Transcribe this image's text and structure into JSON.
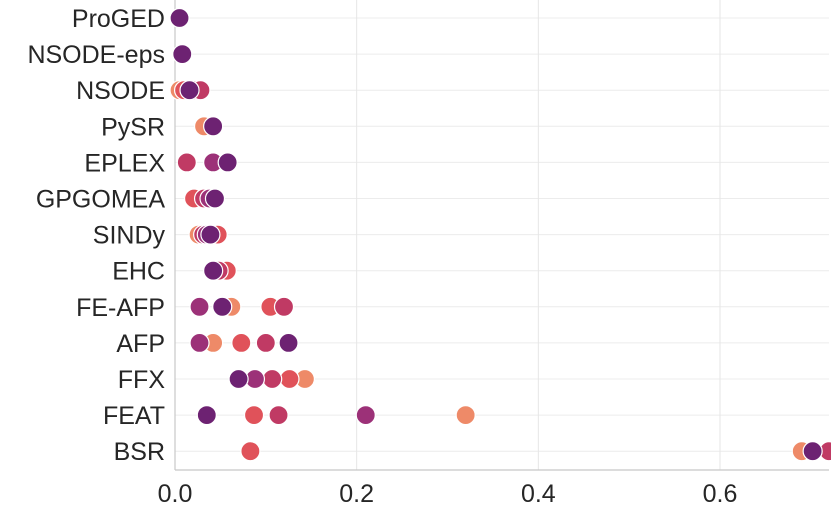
{
  "chart_data": {
    "type": "scatter",
    "categories": [
      "ProGED",
      "NSODE-eps",
      "NSODE",
      "PySR",
      "EPLEX",
      "GPGOMEA",
      "SINDy",
      "EHC",
      "FE-AFP",
      "AFP",
      "FFX",
      "FEAT",
      "BSR"
    ],
    "xlim": [
      0.0,
      0.72
    ],
    "xticks": [
      0.0,
      0.2,
      0.4,
      0.6
    ],
    "xtick_labels": [
      "0.0",
      "0.2",
      "0.4",
      "0.6"
    ],
    "grid": true,
    "palette": [
      "#ee8a68",
      "#e0525a",
      "#c03a64",
      "#9c3178",
      "#6d2272"
    ],
    "points": [
      {
        "cat": "ProGED",
        "x": 0.005,
        "c": 4
      },
      {
        "cat": "NSODE-eps",
        "x": 0.008,
        "c": 4
      },
      {
        "cat": "NSODE",
        "x": 0.005,
        "c": 0
      },
      {
        "cat": "NSODE",
        "x": 0.01,
        "c": 1
      },
      {
        "cat": "NSODE",
        "x": 0.021,
        "c": 2
      },
      {
        "cat": "NSODE",
        "x": 0.028,
        "c": 2
      },
      {
        "cat": "NSODE",
        "x": 0.016,
        "c": 4
      },
      {
        "cat": "PySR",
        "x": 0.032,
        "c": 0
      },
      {
        "cat": "PySR",
        "x": 0.042,
        "c": 4
      },
      {
        "cat": "EPLEX",
        "x": 0.013,
        "c": 2
      },
      {
        "cat": "EPLEX",
        "x": 0.042,
        "c": 3
      },
      {
        "cat": "EPLEX",
        "x": 0.058,
        "c": 4
      },
      {
        "cat": "GPGOMEA",
        "x": 0.021,
        "c": 1
      },
      {
        "cat": "GPGOMEA",
        "x": 0.032,
        "c": 2
      },
      {
        "cat": "GPGOMEA",
        "x": 0.038,
        "c": 3
      },
      {
        "cat": "GPGOMEA",
        "x": 0.044,
        "c": 4
      },
      {
        "cat": "SINDy",
        "x": 0.026,
        "c": 0
      },
      {
        "cat": "SINDy",
        "x": 0.047,
        "c": 1
      },
      {
        "cat": "SINDy",
        "x": 0.031,
        "c": 2
      },
      {
        "cat": "SINDy",
        "x": 0.035,
        "c": 3
      },
      {
        "cat": "SINDy",
        "x": 0.039,
        "c": 4
      },
      {
        "cat": "EHC",
        "x": 0.051,
        "c": 0
      },
      {
        "cat": "EHC",
        "x": 0.057,
        "c": 1
      },
      {
        "cat": "EHC",
        "x": 0.048,
        "c": 2
      },
      {
        "cat": "EHC",
        "x": 0.042,
        "c": 4
      },
      {
        "cat": "FE-AFP",
        "x": 0.062,
        "c": 0
      },
      {
        "cat": "FE-AFP",
        "x": 0.105,
        "c": 1
      },
      {
        "cat": "FE-AFP",
        "x": 0.12,
        "c": 2
      },
      {
        "cat": "FE-AFP",
        "x": 0.027,
        "c": 3
      },
      {
        "cat": "FE-AFP",
        "x": 0.052,
        "c": 4
      },
      {
        "cat": "AFP",
        "x": 0.042,
        "c": 0
      },
      {
        "cat": "AFP",
        "x": 0.073,
        "c": 1
      },
      {
        "cat": "AFP",
        "x": 0.1,
        "c": 2
      },
      {
        "cat": "AFP",
        "x": 0.027,
        "c": 3
      },
      {
        "cat": "AFP",
        "x": 0.125,
        "c": 4
      },
      {
        "cat": "FFX",
        "x": 0.143,
        "c": 0
      },
      {
        "cat": "FFX",
        "x": 0.126,
        "c": 1
      },
      {
        "cat": "FFX",
        "x": 0.107,
        "c": 2
      },
      {
        "cat": "FFX",
        "x": 0.088,
        "c": 3
      },
      {
        "cat": "FFX",
        "x": 0.07,
        "c": 4
      },
      {
        "cat": "FEAT",
        "x": 0.32,
        "c": 0
      },
      {
        "cat": "FEAT",
        "x": 0.087,
        "c": 1
      },
      {
        "cat": "FEAT",
        "x": 0.114,
        "c": 2
      },
      {
        "cat": "FEAT",
        "x": 0.21,
        "c": 3
      },
      {
        "cat": "FEAT",
        "x": 0.035,
        "c": 4
      },
      {
        "cat": "BSR",
        "x": 0.69,
        "c": 0
      },
      {
        "cat": "BSR",
        "x": 0.083,
        "c": 1
      },
      {
        "cat": "BSR",
        "x": 0.72,
        "c": 2
      },
      {
        "cat": "BSR",
        "x": 0.702,
        "c": 4
      }
    ]
  }
}
